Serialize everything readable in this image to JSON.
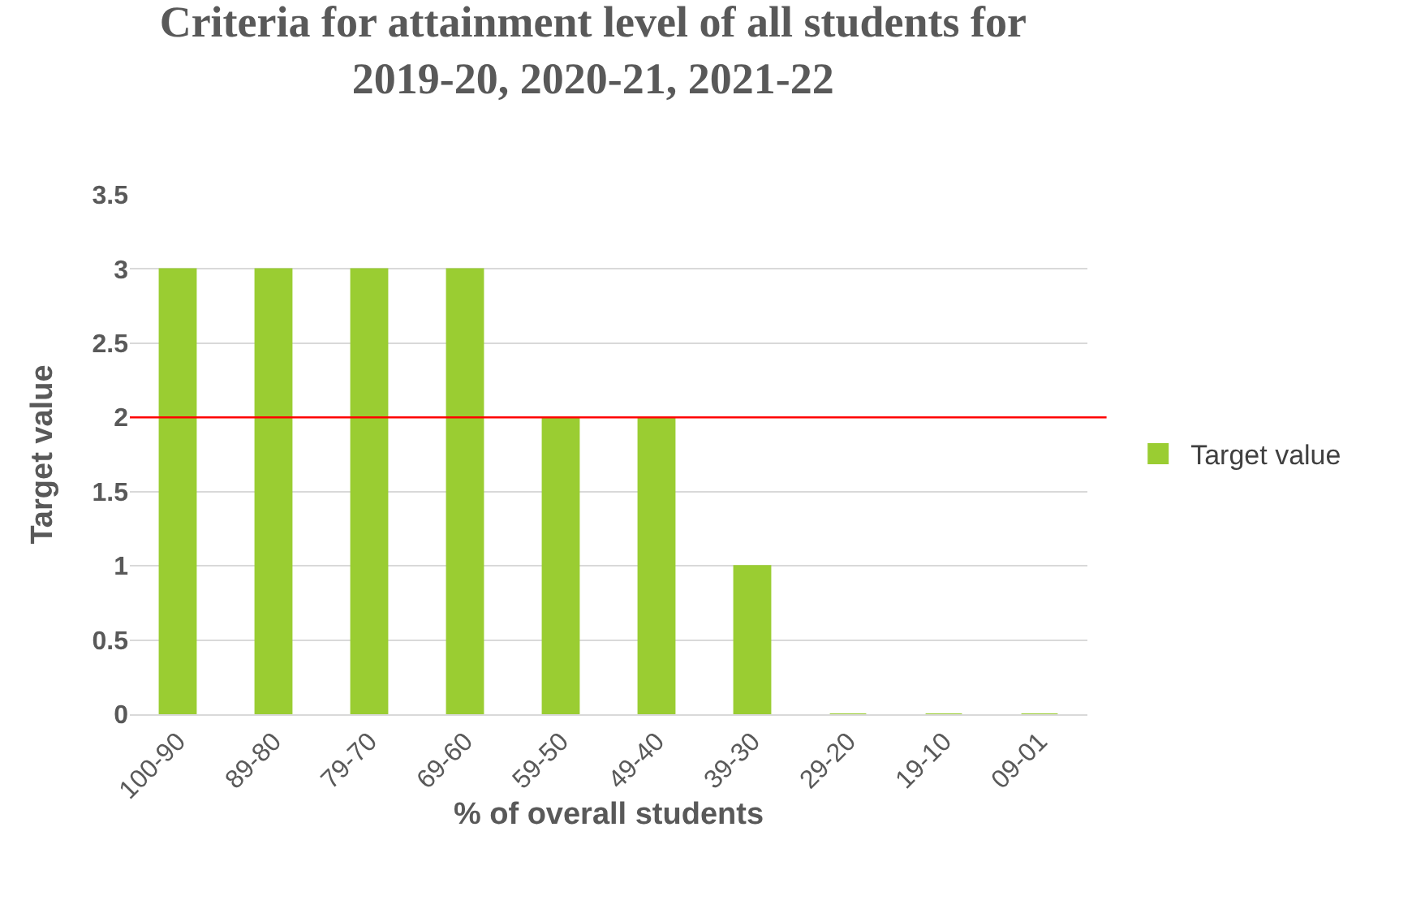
{
  "chart_data": {
    "type": "bar",
    "title": "Criteria for attainment level of all students for 2019-20, 2020-21, 2021-22",
    "xlabel": "% of overall students",
    "ylabel": "Target value",
    "categories": [
      "100-90",
      "89-80",
      "79-70",
      "69-60",
      "59-50",
      "49-40",
      "39-30",
      "29-20",
      "19-10",
      "09-01"
    ],
    "series": [
      {
        "name": "Target value",
        "color": "#9acd32",
        "values": [
          3,
          3,
          3,
          3,
          2,
          2,
          1,
          0,
          0,
          0
        ]
      }
    ],
    "ylim": [
      0,
      3.5
    ],
    "yticks": [
      0,
      0.5,
      1,
      1.5,
      2,
      2.5,
      3,
      3.5
    ],
    "grid": "y",
    "legend": "right",
    "ref_lines": [
      {
        "axis": "y",
        "value": 2,
        "color": "#ff0000"
      }
    ]
  }
}
